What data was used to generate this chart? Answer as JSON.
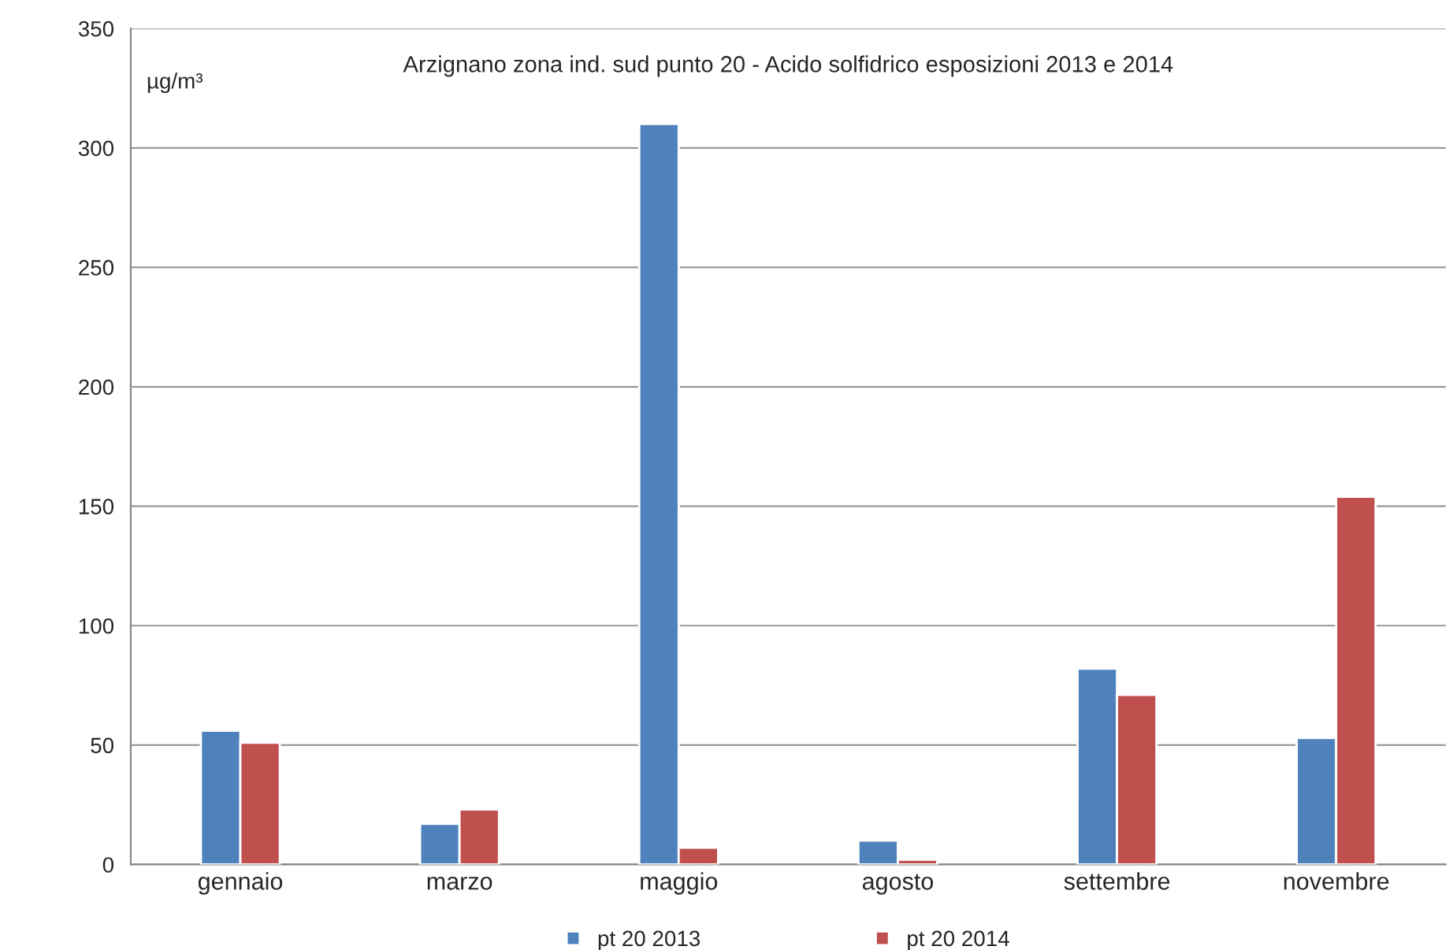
{
  "chart_data": {
    "type": "bar",
    "title": "Arzignano zona ind. sud punto 20 - Acido solfidrico esposizioni 2013 e 2014",
    "ylabel": "µg/m³",
    "categories": [
      "gennaio",
      "marzo",
      "maggio",
      "agosto",
      "settembre",
      "novembre"
    ],
    "series": [
      {
        "name": "pt 20 2013",
        "color": "#4f81bd",
        "values": [
          56,
          17,
          310,
          10,
          82,
          53
        ]
      },
      {
        "name": "pt 20 2014",
        "color": "#c0504d",
        "values": [
          51,
          23,
          7,
          2,
          71,
          154
        ]
      }
    ],
    "ylim": [
      0,
      350
    ],
    "yticks": [
      0,
      50,
      100,
      150,
      200,
      250,
      300,
      350
    ],
    "grid": "y",
    "legend": "bottom"
  }
}
